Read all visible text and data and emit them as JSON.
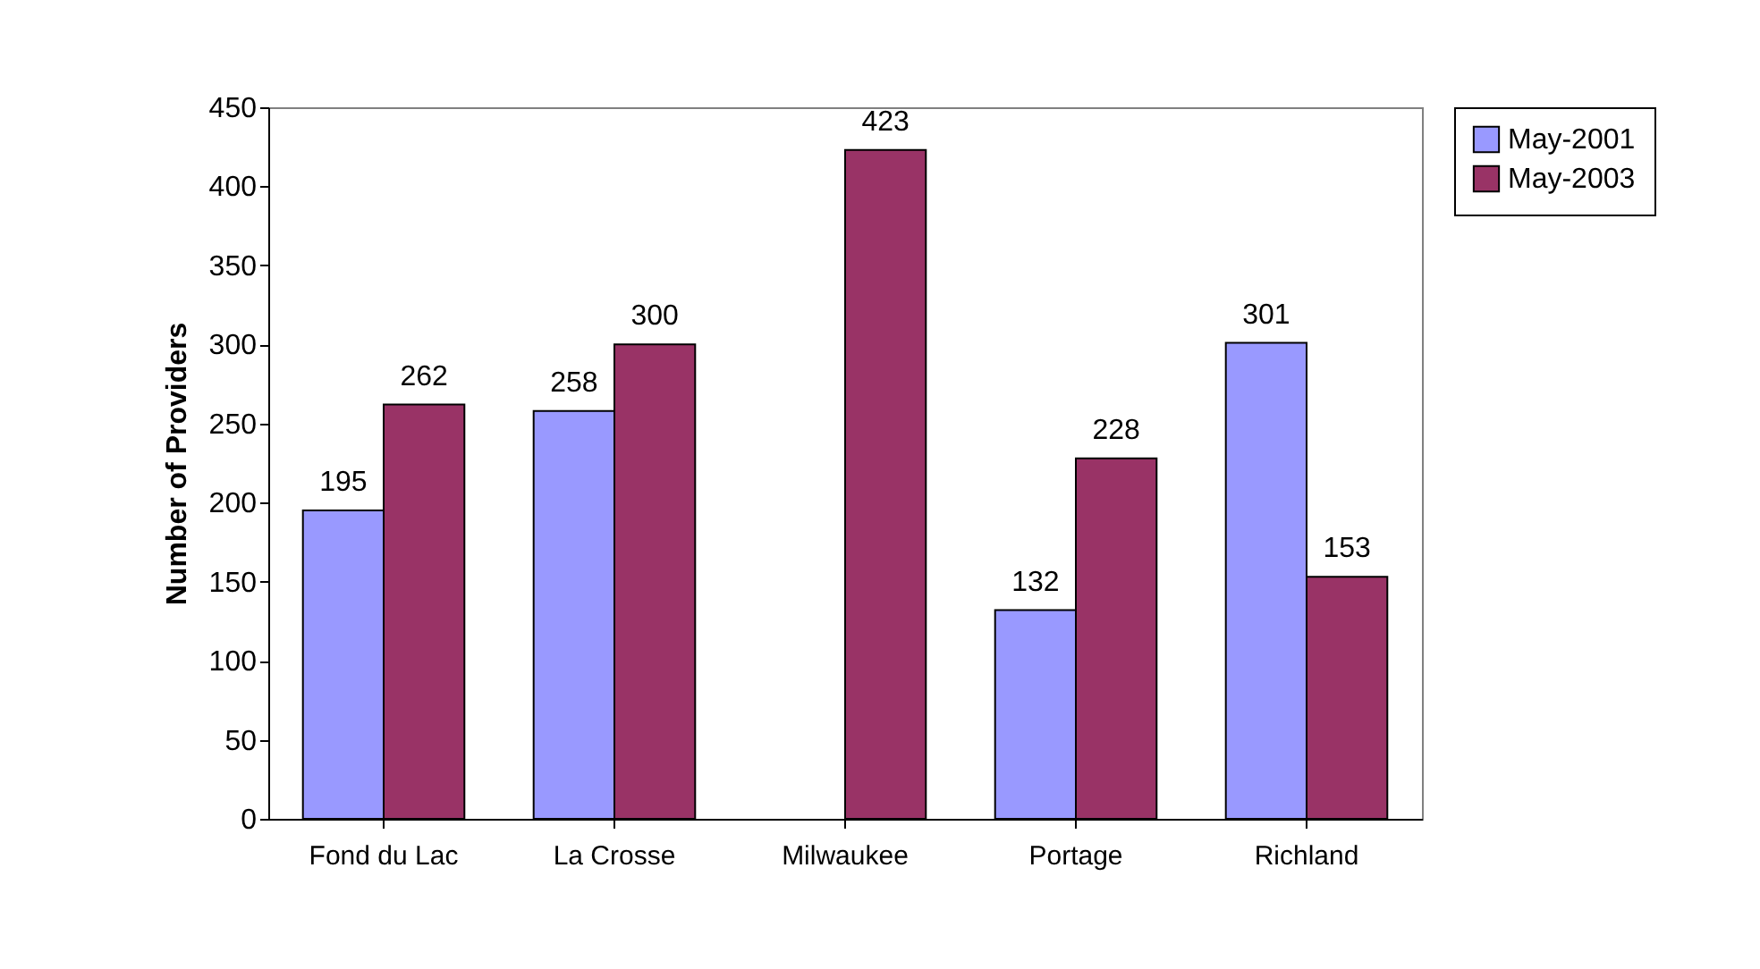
{
  "chart_data": {
    "type": "bar",
    "ylabel": "Number of Providers",
    "categories": [
      "Fond du Lac",
      "La Crosse",
      "Milwaukee",
      "Portage",
      "Richland"
    ],
    "series": [
      {
        "name": "May-2001",
        "color": "#9999ff",
        "values": [
          195,
          258,
          null,
          132,
          301
        ]
      },
      {
        "name": "May-2003",
        "color": "#993366",
        "values": [
          262,
          300,
          423,
          228,
          153
        ]
      }
    ],
    "ylim": [
      0,
      450
    ],
    "yticks": [
      0,
      50,
      100,
      150,
      200,
      250,
      300,
      350,
      400,
      450
    ],
    "data_labels": true,
    "legend": "right",
    "grid": false
  }
}
